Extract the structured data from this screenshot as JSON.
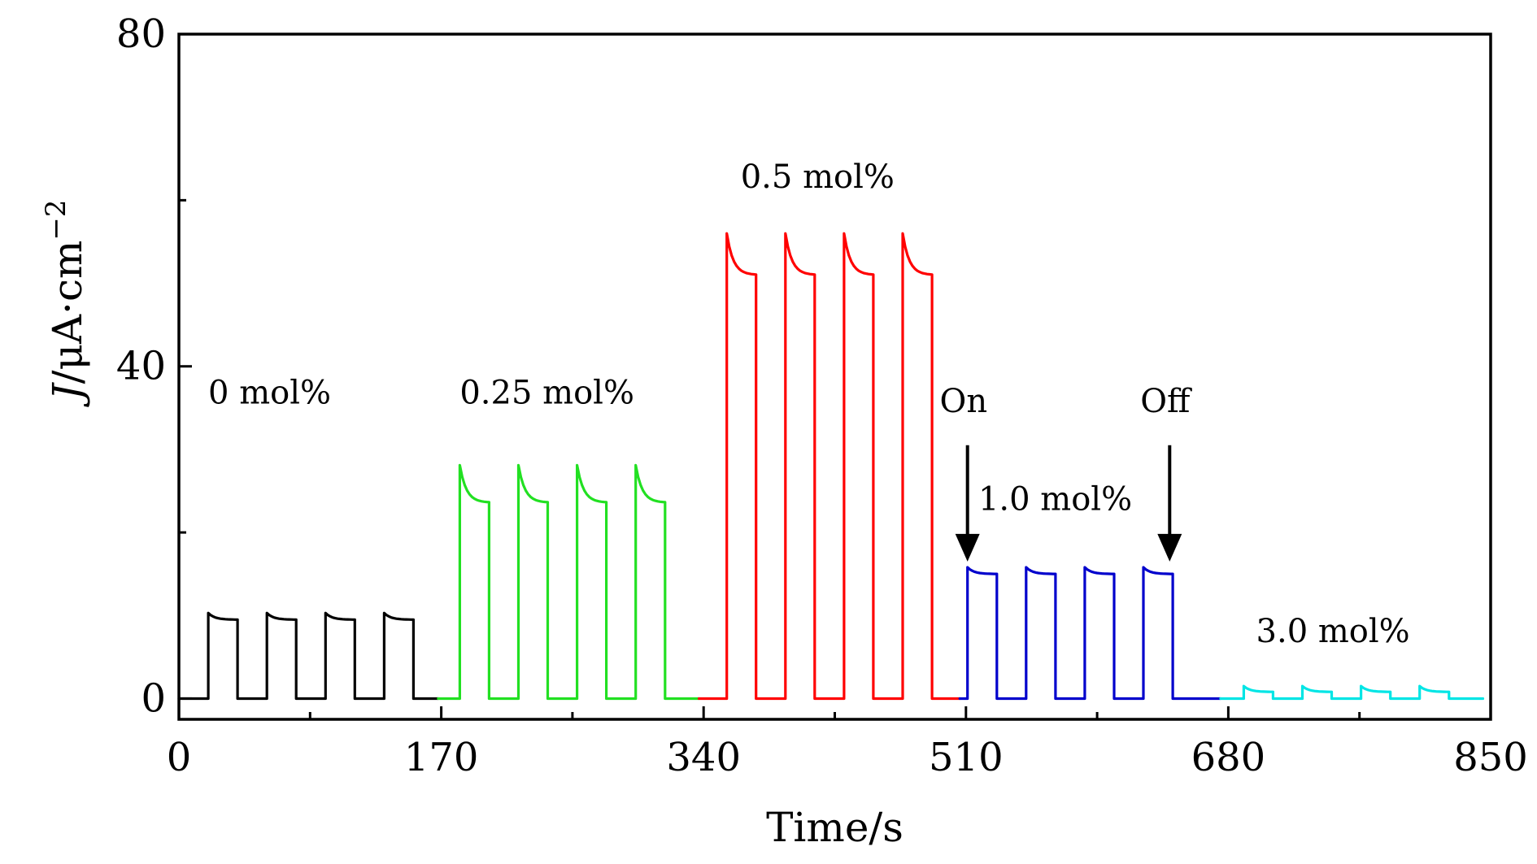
{
  "chart_data": {
    "type": "line",
    "title": "",
    "xlabel": "Time/s",
    "ylabel_main": "J",
    "ylabel_rest": "/μA·cm",
    "ylabel_exp": "−2",
    "xlim": [
      0,
      850
    ],
    "ylim": [
      -2.5,
      80
    ],
    "x_ticks": [
      0,
      170,
      340,
      510,
      680,
      850
    ],
    "x_tick_labels": [
      "0",
      "170",
      "340",
      "510",
      "680",
      "850"
    ],
    "x_minor_ticks": [
      85,
      255,
      425,
      595,
      765
    ],
    "y_ticks": [
      0,
      40,
      80
    ],
    "y_tick_labels": [
      "0",
      "40",
      "80"
    ],
    "y_minor_ticks": [
      20,
      60
    ],
    "series": [
      {
        "name": "0 mol%",
        "color": "#000000",
        "x_start": 0,
        "x_end": 168,
        "on_level": 9.5,
        "peak": 10.3,
        "pulses": [
          [
            19,
            38
          ],
          [
            57,
            76
          ],
          [
            95,
            114
          ],
          [
            133,
            152
          ]
        ]
      },
      {
        "name": "0.25 mol%",
        "color": "#22e022",
        "x_start": 168,
        "x_end": 337,
        "on_level": 23.6,
        "peak": 28.1,
        "pulses": [
          [
            182,
            201
          ],
          [
            220,
            239
          ],
          [
            258,
            277
          ],
          [
            296,
            315
          ]
        ]
      },
      {
        "name": "0.5 mol%",
        "color": "#ff0000",
        "x_start": 337,
        "x_end": 506,
        "on_level": 51.0,
        "peak": 56.0,
        "pulses": [
          [
            355,
            374
          ],
          [
            393,
            412
          ],
          [
            431,
            450
          ],
          [
            469,
            488
          ]
        ]
      },
      {
        "name": "1.0 mol%",
        "color": "#0000cc",
        "x_start": 506,
        "x_end": 675,
        "on_level": 15.0,
        "peak": 15.8,
        "pulses": [
          [
            511,
            530
          ],
          [
            549,
            568
          ],
          [
            587,
            606
          ],
          [
            625,
            644
          ]
        ]
      },
      {
        "name": "3.0 mol%",
        "color": "#00e5e5",
        "x_start": 675,
        "x_end": 845,
        "on_level": 0.8,
        "peak": 1.5,
        "pulses": [
          [
            690,
            709
          ],
          [
            728,
            747
          ],
          [
            766,
            785
          ],
          [
            804,
            823
          ]
        ]
      }
    ],
    "annotations": [
      {
        "text": "0 mol%",
        "x": 19,
        "y": 35.5
      },
      {
        "text": "0.25 mol%",
        "x": 182,
        "y": 35.5
      },
      {
        "text": "0.5 mol%",
        "x": 364,
        "y": 61.5
      },
      {
        "text": "On",
        "x": 493,
        "y": 34.5
      },
      {
        "text": "Off",
        "x": 623,
        "y": 34.5
      },
      {
        "text": "1.0 mol%",
        "x": 518,
        "y": 22.7
      },
      {
        "text": "3.0 mol%",
        "x": 698,
        "y": 6.8
      }
    ],
    "arrows": [
      {
        "label": "On",
        "x": 511,
        "y_from": 30.5,
        "y_to": 16.5
      },
      {
        "label": "Off",
        "x": 642,
        "y_from": 30.5,
        "y_to": 16.5
      }
    ]
  }
}
